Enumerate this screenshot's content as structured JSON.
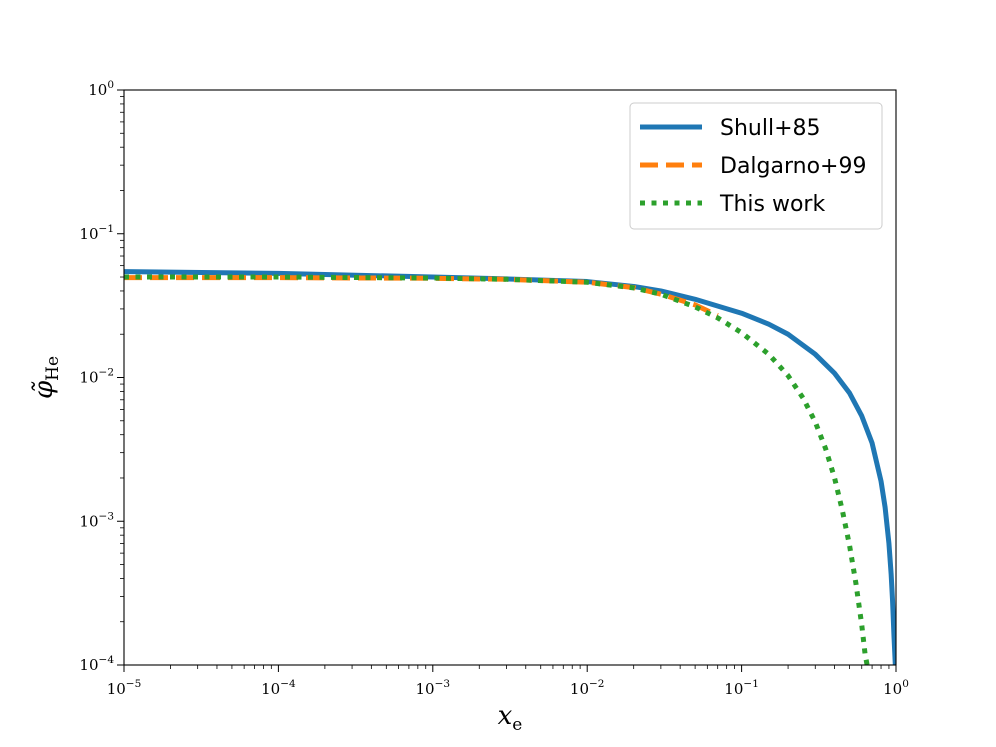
{
  "chart_data": {
    "type": "line",
    "title": "",
    "xlabel": "x",
    "xlabel_sub": "e",
    "ylabel": "φ̃",
    "ylabel_sub": "He",
    "xscale": "log",
    "yscale": "log",
    "xlim": [
      1e-05,
      1
    ],
    "ylim": [
      0.0001,
      1
    ],
    "x_ticks": [
      {
        "value": 1e-05,
        "base": "10",
        "exp": "−5"
      },
      {
        "value": 0.0001,
        "base": "10",
        "exp": "−4"
      },
      {
        "value": 0.001,
        "base": "10",
        "exp": "−3"
      },
      {
        "value": 0.01,
        "base": "10",
        "exp": "−2"
      },
      {
        "value": 0.1,
        "base": "10",
        "exp": "−1"
      },
      {
        "value": 1,
        "base": "10",
        "exp": "0"
      }
    ],
    "y_ticks": [
      {
        "value": 0.0001,
        "base": "10",
        "exp": "−4"
      },
      {
        "value": 0.001,
        "base": "10",
        "exp": "−3"
      },
      {
        "value": 0.01,
        "base": "10",
        "exp": "−2"
      },
      {
        "value": 0.1,
        "base": "10",
        "exp": "−1"
      },
      {
        "value": 1,
        "base": "10",
        "exp": "0"
      }
    ],
    "grid": false,
    "legend_position": "top-right",
    "series": [
      {
        "name": "Shull+85",
        "color": "#1f77b4",
        "style": "solid",
        "x": [
          1e-05,
          0.0001,
          0.001,
          0.003,
          0.01,
          0.02,
          0.03,
          0.05,
          0.1,
          0.15,
          0.2,
          0.3,
          0.4,
          0.5,
          0.6,
          0.7,
          0.8,
          0.85,
          0.9,
          0.93,
          0.95,
          0.97,
          0.99
        ],
        "y": [
          0.0545,
          0.053,
          0.05,
          0.0485,
          0.0465,
          0.043,
          0.04,
          0.035,
          0.028,
          0.0235,
          0.02,
          0.0145,
          0.0107,
          0.0078,
          0.0054,
          0.0035,
          0.0019,
          0.00125,
          0.0007,
          0.00043,
          0.00028,
          0.00016,
          0.0001
        ]
      },
      {
        "name": "Dalgarno+99",
        "color": "#ff7f0e",
        "style": "dashed",
        "x": [
          1e-05,
          0.0001,
          0.001,
          0.003,
          0.01,
          0.02,
          0.03,
          0.05,
          0.07
        ],
        "y": [
          0.0495,
          0.0495,
          0.049,
          0.0482,
          0.046,
          0.0422,
          0.038,
          0.032,
          0.027
        ]
      },
      {
        "name": "This work",
        "color": "#2ca02c",
        "style": "dotted",
        "x": [
          1e-05,
          0.0001,
          0.001,
          0.003,
          0.01,
          0.02,
          0.03,
          0.05,
          0.07,
          0.1,
          0.15,
          0.2,
          0.25,
          0.3,
          0.35,
          0.4,
          0.45,
          0.5,
          0.55,
          0.6,
          0.63,
          0.65
        ],
        "y": [
          0.05,
          0.05,
          0.0492,
          0.0482,
          0.046,
          0.042,
          0.038,
          0.031,
          0.026,
          0.0205,
          0.0145,
          0.0103,
          0.0072,
          0.0049,
          0.0032,
          0.002,
          0.00118,
          0.00068,
          0.00037,
          0.00019,
          0.00012,
          0.0001
        ]
      }
    ]
  }
}
